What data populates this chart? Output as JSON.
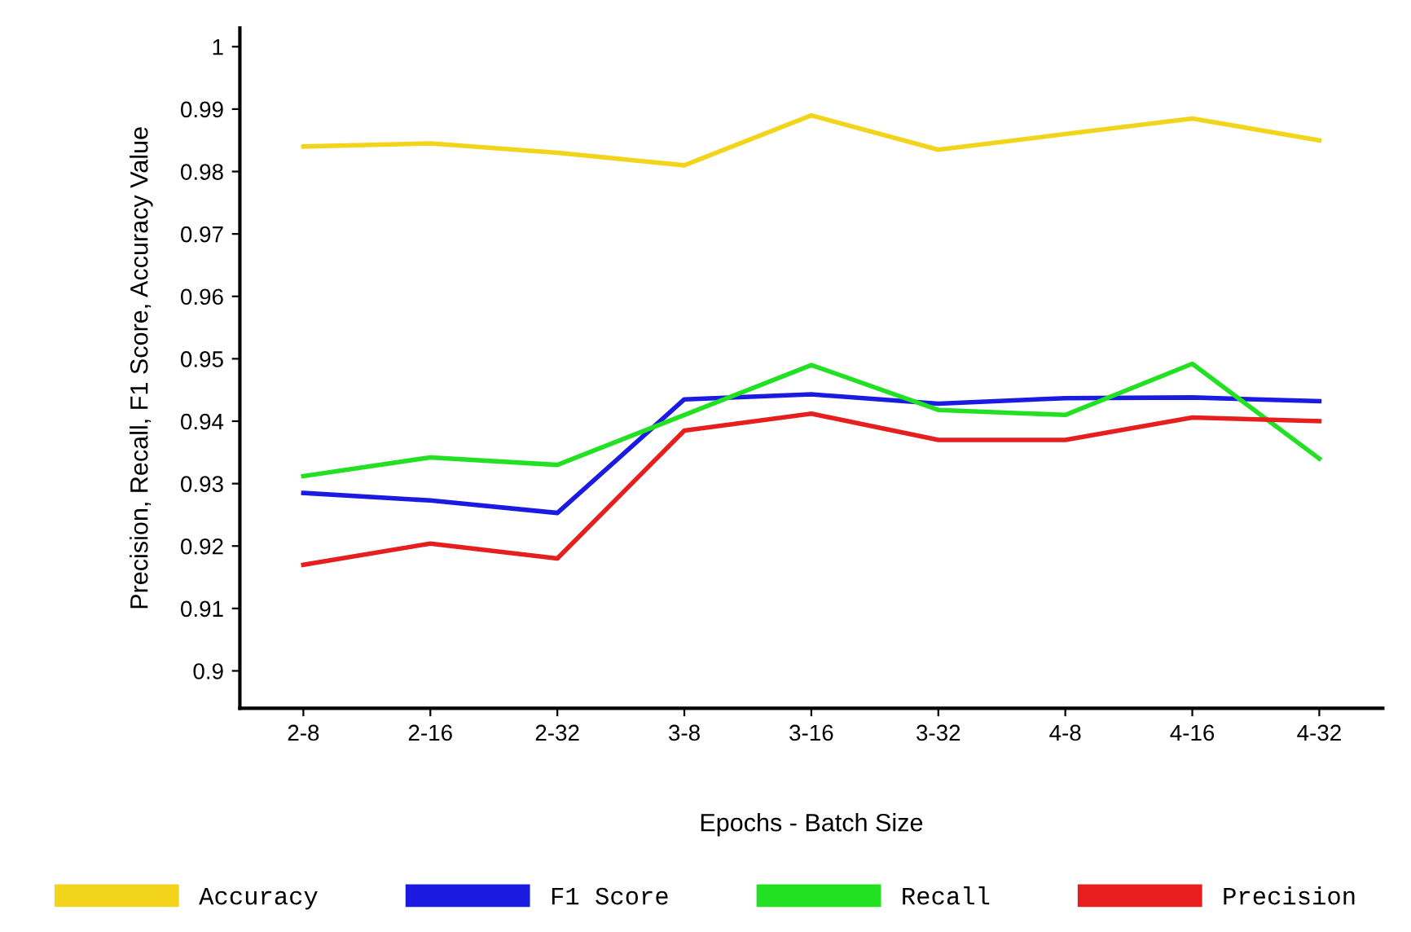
{
  "chart_data": {
    "type": "line",
    "xlabel": "Epochs - Batch Size",
    "ylabel": "Precision, Recall, F1 Score, Accuracy Value",
    "categories": [
      "2-8",
      "2-16",
      "2-32",
      "3-8",
      "3-16",
      "3-32",
      "4-8",
      "4-16",
      "4-32"
    ],
    "series": [
      {
        "name": "Accuracy",
        "color": "#f2d51a",
        "values": [
          0.984,
          0.9845,
          0.983,
          0.981,
          0.989,
          0.9835,
          0.986,
          0.9885,
          0.985
        ]
      },
      {
        "name": "F1 Score",
        "color": "#1a1ae0",
        "values": [
          0.9285,
          0.9273,
          0.9253,
          0.9435,
          0.9443,
          0.9428,
          0.9437,
          0.9438,
          0.9432
        ]
      },
      {
        "name": "Recall",
        "color": "#22e022",
        "values": [
          0.9312,
          0.9342,
          0.933,
          0.941,
          0.949,
          0.9418,
          0.941,
          0.9492,
          0.934
        ]
      },
      {
        "name": "Precision",
        "color": "#e61e1e",
        "values": [
          0.917,
          0.9204,
          0.918,
          0.9385,
          0.9412,
          0.937,
          0.937,
          0.9406,
          0.94
        ]
      }
    ],
    "ylim": [
      0.894,
      1.003
    ],
    "yticks": [
      0.9,
      0.91,
      0.92,
      0.93,
      0.94,
      0.95,
      0.96,
      0.97,
      0.98,
      0.99,
      1
    ],
    "grid": false,
    "legend": "bottom",
    "marker": "none",
    "line_style": "solid"
  }
}
